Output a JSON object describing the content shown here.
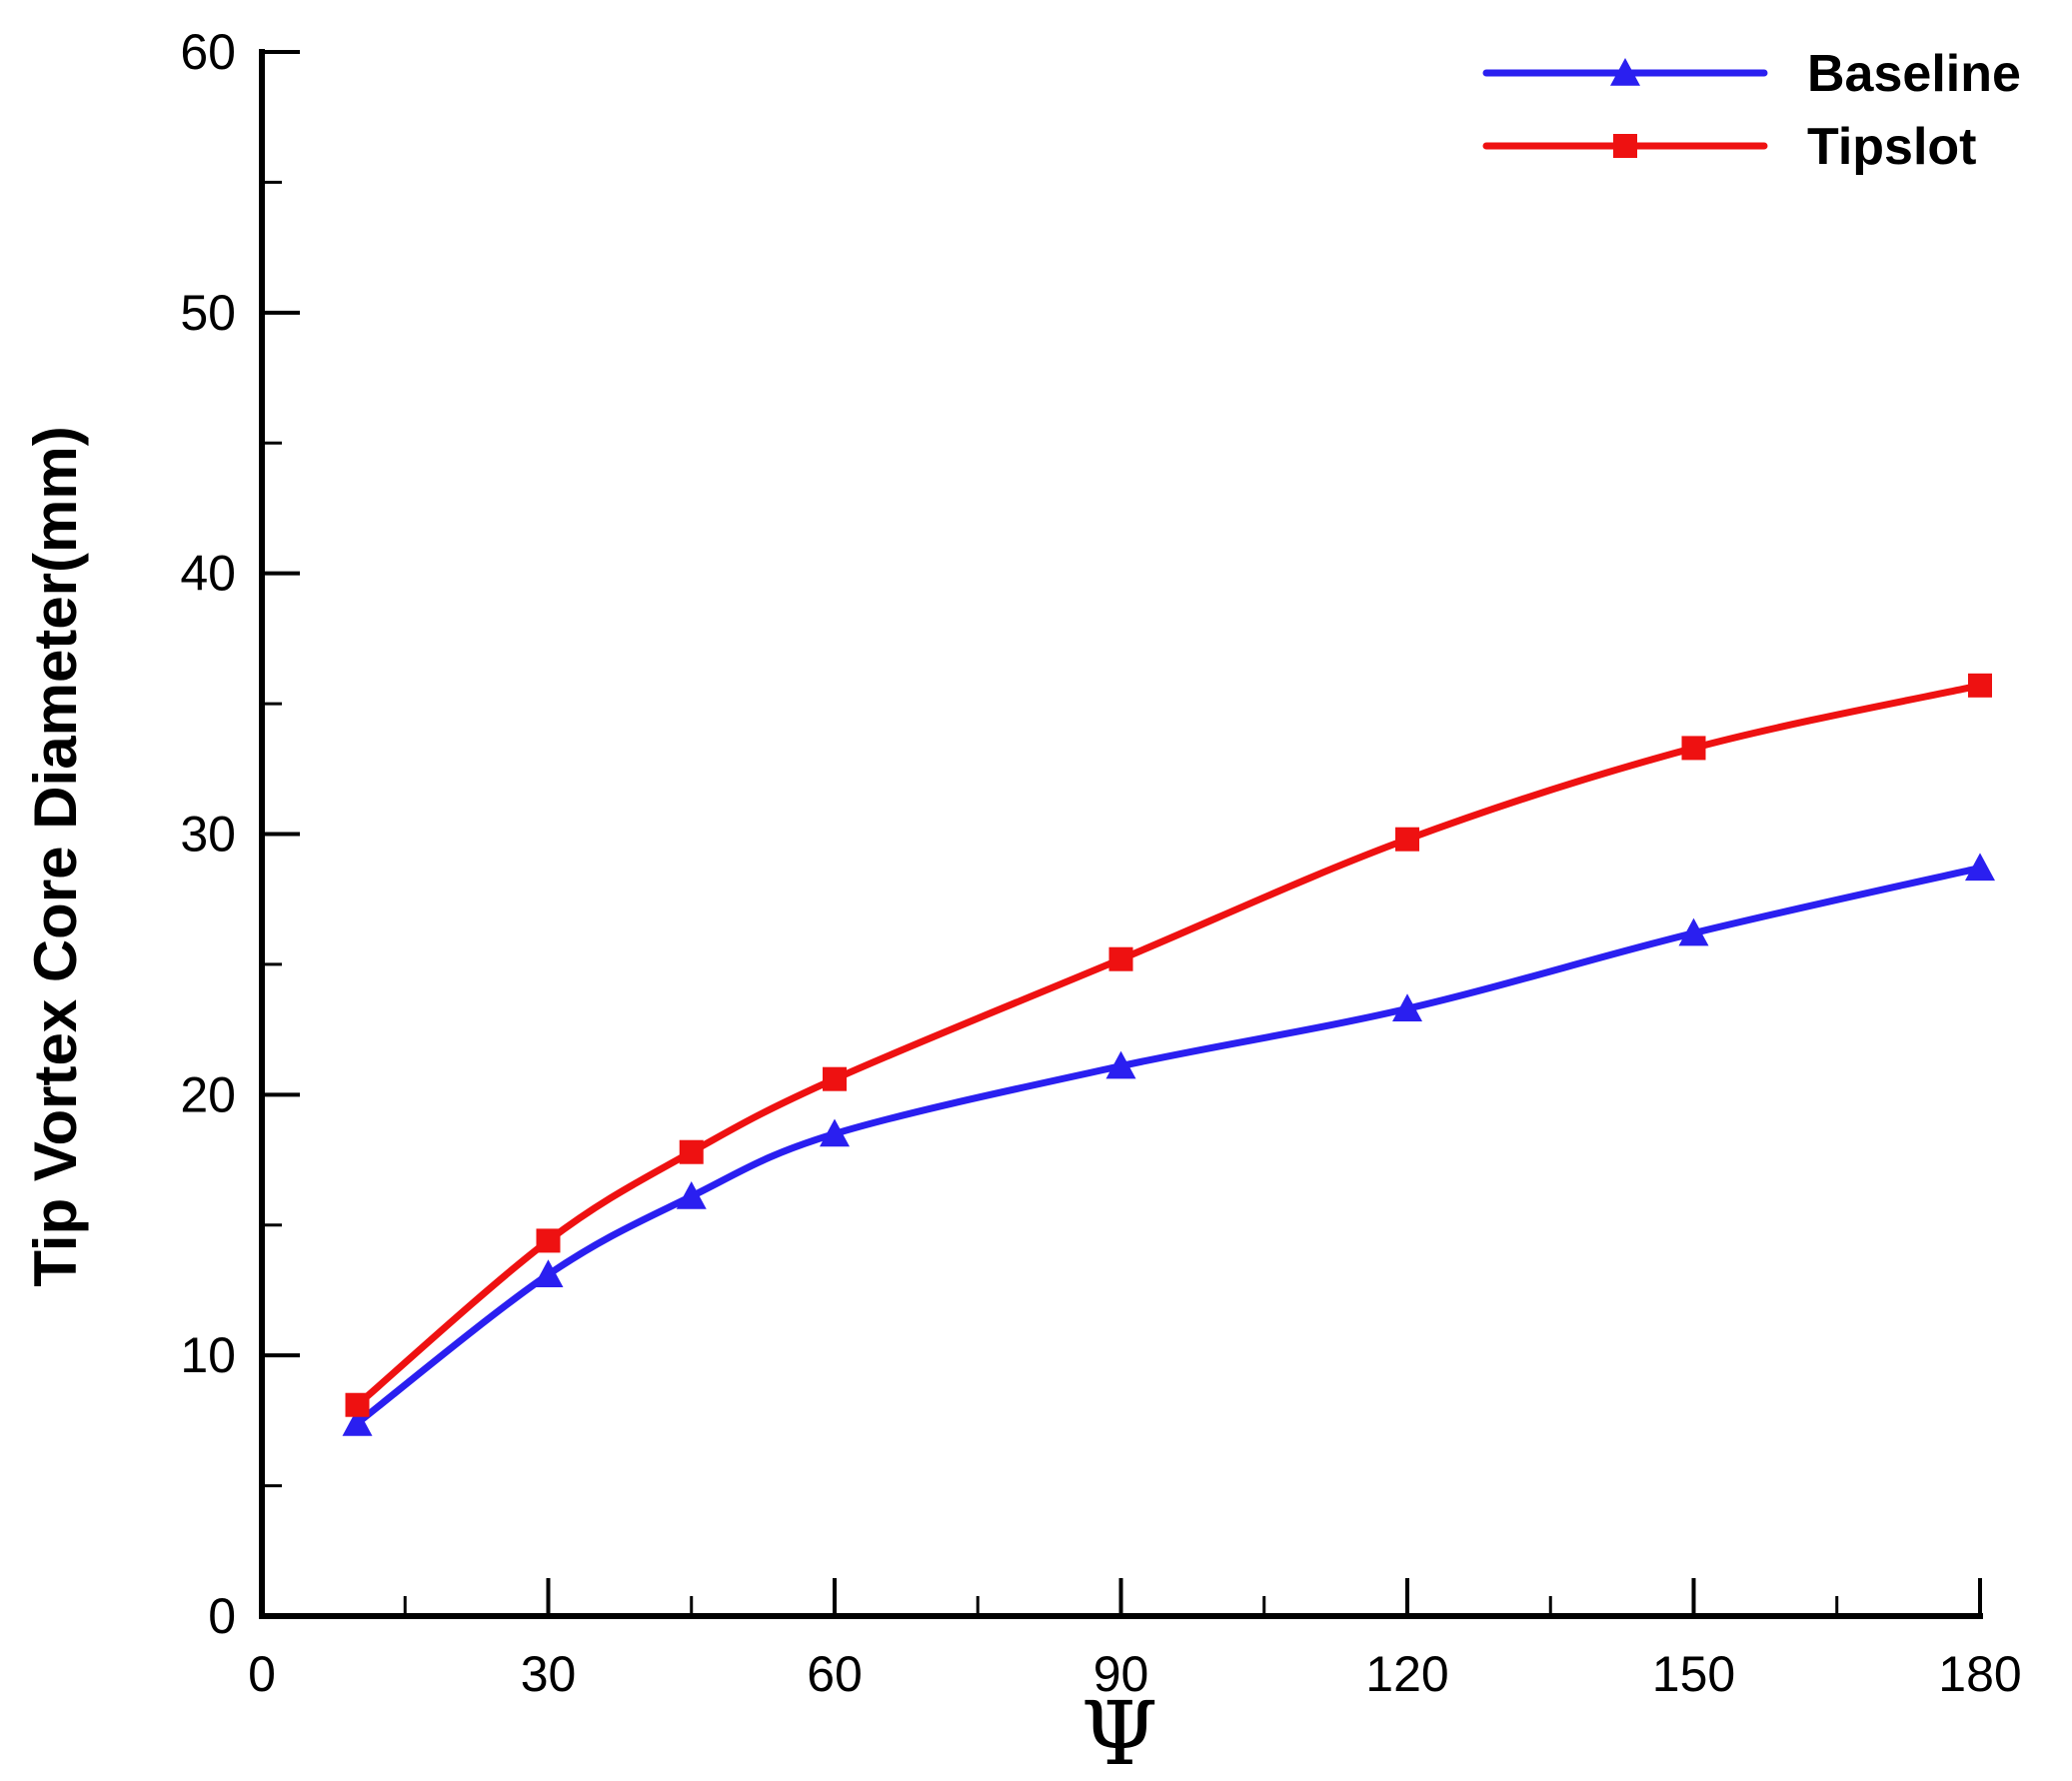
{
  "chart_data": {
    "type": "line",
    "title": "",
    "xlabel": "Ψ",
    "ylabel": "Tip Vortex Core Diameter(mm)",
    "xlim": [
      0,
      180
    ],
    "ylim": [
      0,
      60
    ],
    "xticks": [
      0,
      30,
      60,
      90,
      120,
      150,
      180
    ],
    "yticks": [
      0,
      10,
      20,
      30,
      40,
      50,
      60
    ],
    "x_minor_step": 15,
    "y_minor_step": 5,
    "grid": false,
    "legend_position": "top-right",
    "series": [
      {
        "name": "Baseline",
        "color": "#2a1ff0",
        "marker": "triangle",
        "x": [
          10,
          30,
          45,
          60,
          90,
          120,
          150,
          180
        ],
        "y": [
          7.4,
          13.1,
          16.1,
          18.5,
          21.1,
          23.3,
          26.2,
          28.7
        ]
      },
      {
        "name": "Tipslot",
        "color": "#ee1111",
        "marker": "square",
        "x": [
          10,
          30,
          45,
          60,
          90,
          120,
          150,
          180
        ],
        "y": [
          8.1,
          14.4,
          17.8,
          20.6,
          25.2,
          29.8,
          33.3,
          35.7
        ]
      }
    ]
  }
}
